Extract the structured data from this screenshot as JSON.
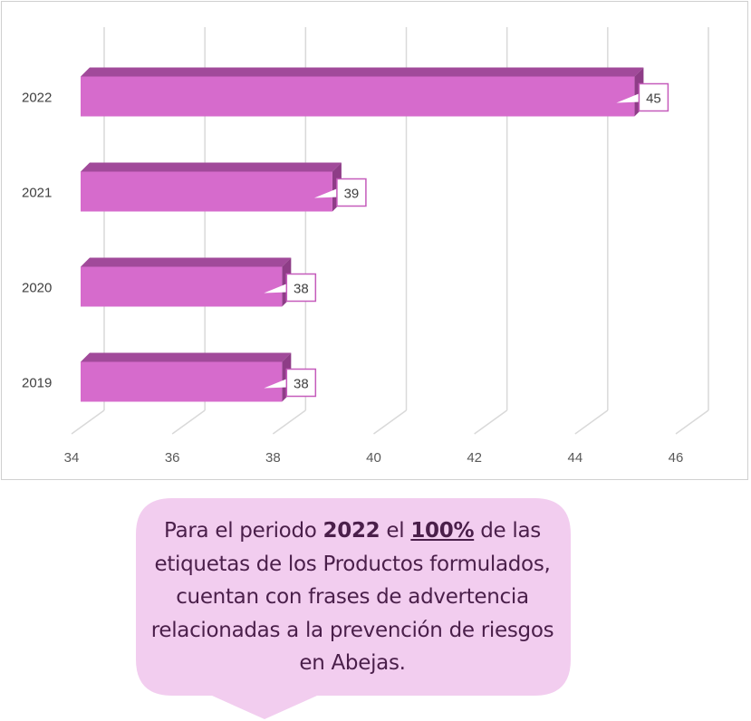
{
  "chart_data": {
    "type": "bar",
    "orientation": "horizontal",
    "three_d": true,
    "categories": [
      "2019",
      "2020",
      "2021",
      "2022"
    ],
    "values": [
      38,
      38,
      39,
      45
    ],
    "xlim": [
      34,
      46
    ],
    "xticks": [
      "34",
      "36",
      "38",
      "40",
      "42",
      "44",
      "46"
    ],
    "grid": true,
    "legend": "none",
    "bar_color": "#d66bcc",
    "bar_top_color": "#a14a9a",
    "bar_side_color": "#8e3d87",
    "data_label_border": "#c55bbb"
  },
  "callout": {
    "text_1": "Para el periodo ",
    "year": "2022",
    "text_2": " el ",
    "percent": "100%",
    "text_3": " de las etiquetas de los Productos formulados, cuentan con frases de advertencia relacionadas a la prevención de riesgos en Abejas.",
    "bg_color": "#f2cdef",
    "text_color": "#4a1f4a"
  }
}
